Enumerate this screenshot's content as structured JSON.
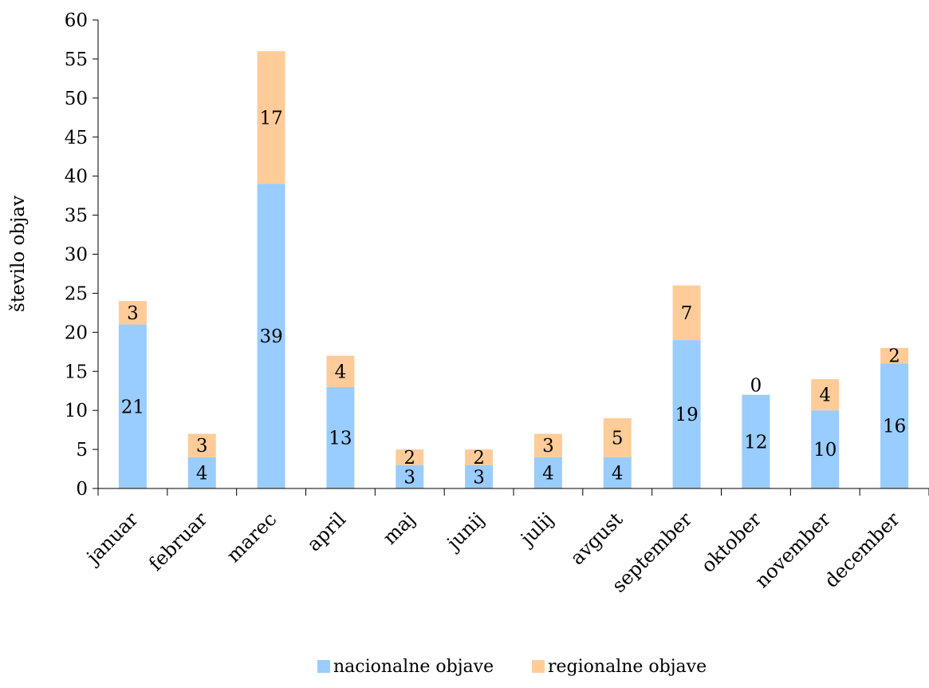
{
  "chart_data": {
    "type": "bar",
    "stacked": true,
    "ylabel": "število objav",
    "ylim": [
      0,
      60
    ],
    "ytick_step": 5,
    "categories": [
      "januar",
      "februar",
      "marec",
      "april",
      "maj",
      "junij",
      "julij",
      "avgust",
      "september",
      "oktober",
      "november",
      "december"
    ],
    "series": [
      {
        "name": "nacionalne objave",
        "color": "#99ccff",
        "values": [
          21,
          4,
          39,
          13,
          3,
          3,
          4,
          4,
          19,
          12,
          10,
          16
        ]
      },
      {
        "name": "regionalne objave",
        "color": "#ffcc99",
        "values": [
          3,
          3,
          17,
          4,
          2,
          2,
          3,
          5,
          7,
          0,
          4,
          2
        ]
      }
    ],
    "data_labels": true,
    "legend_position": "bottom",
    "grid": false
  }
}
